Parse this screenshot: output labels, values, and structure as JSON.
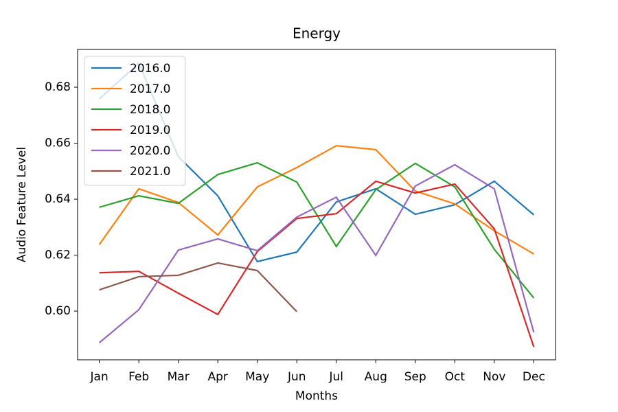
{
  "chart_data": {
    "type": "line",
    "title": "Energy",
    "xlabel": "Months",
    "ylabel": "Audio Feature Level",
    "categories": [
      "Jan",
      "Feb",
      "Mar",
      "Apr",
      "May",
      "Jun",
      "Jul",
      "Aug",
      "Sep",
      "Oct",
      "Nov",
      "Dec"
    ],
    "ylim": [
      0.5826,
      0.6935
    ],
    "yticks": [
      {
        "value": 0.6,
        "label": "0.60"
      },
      0.62,
      0.64,
      0.66,
      0.68
    ],
    "legend": "upper left",
    "grid": false,
    "series": [
      {
        "name": "2016.0",
        "color": "#1f77b4",
        "values": [
          0.6758,
          0.6886,
          0.6552,
          0.6412,
          0.6177,
          0.6211,
          0.639,
          0.6437,
          0.6346,
          0.638,
          0.6464,
          0.6344
        ]
      },
      {
        "name": "2017.0",
        "color": "#ff7f0e",
        "values": [
          0.6238,
          0.6437,
          0.6388,
          0.6272,
          0.6444,
          0.6513,
          0.6591,
          0.6577,
          0.6429,
          0.6383,
          0.6287,
          0.6204
        ]
      },
      {
        "name": "2018.0",
        "color": "#2ca02c",
        "values": [
          0.6371,
          0.6412,
          0.6385,
          0.6488,
          0.653,
          0.6461,
          0.6231,
          0.6434,
          0.6528,
          0.6444,
          0.6221,
          0.6047
        ]
      },
      {
        "name": "2019.0",
        "color": "#d62728",
        "values": [
          0.6137,
          0.6142,
          0.6064,
          0.5988,
          0.6213,
          0.6331,
          0.6348,
          0.6464,
          0.6422,
          0.6454,
          0.6294,
          0.5872
        ]
      },
      {
        "name": "2020.0",
        "color": "#9467bd",
        "values": [
          0.5887,
          0.6005,
          0.6218,
          0.6258,
          0.6216,
          0.6336,
          0.6407,
          0.6199,
          0.6447,
          0.6523,
          0.6437,
          0.5924
        ]
      },
      {
        "name": "2021.0",
        "color": "#8c564b",
        "values": [
          0.6076,
          0.6123,
          0.6128,
          0.6172,
          0.6145,
          0.5998,
          null,
          null,
          null,
          null,
          null,
          null
        ]
      }
    ]
  }
}
